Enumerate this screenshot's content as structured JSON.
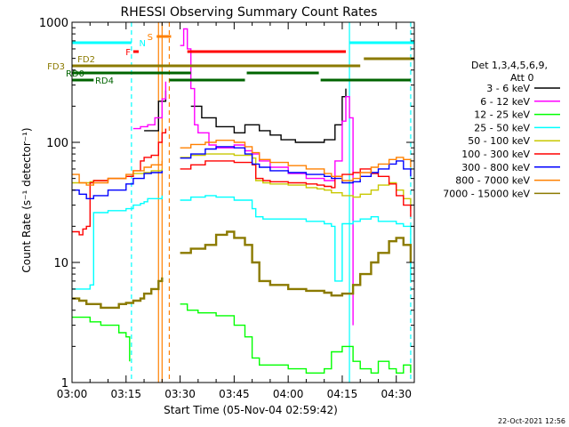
{
  "chart_data": {
    "type": "line",
    "title": "RHESSI Observing Summary Count Rates",
    "xlabel": "Start Time (05-Nov-04 02:59:42)",
    "ylabel": "Count Rate (s⁻¹ detector⁻¹)",
    "yscale": "log",
    "ylim": [
      1,
      1000
    ],
    "xlim_minutes": [
      0,
      95
    ],
    "x_ticks": [
      {
        "t": 0,
        "label": "03:00"
      },
      {
        "t": 15,
        "label": "03:15"
      },
      {
        "t": 30,
        "label": "03:30"
      },
      {
        "t": 45,
        "label": "03:45"
      },
      {
        "t": 60,
        "label": "04:00"
      },
      {
        "t": 75,
        "label": "04:15"
      },
      {
        "t": 90,
        "label": "04:30"
      }
    ],
    "y_ticks": [
      {
        "v": 1,
        "label": "1"
      },
      {
        "v": 10,
        "label": "10"
      },
      {
        "v": 100,
        "label": "100"
      },
      {
        "v": 1000,
        "label": "1000"
      }
    ],
    "detector_info": [
      "Det 1,3,4,5,6,9,",
      "Att 0"
    ],
    "date_stamp": "22-Oct-2021 12:56",
    "grid": false,
    "legend_position": "right",
    "series": [
      {
        "name": "3 - 6 keV",
        "color": "#000000",
        "x": [
          0,
          5,
          10,
          17,
          20,
          24,
          26,
          28,
          30,
          31,
          33,
          36,
          40,
          45,
          48,
          52,
          55,
          58,
          62,
          66,
          70,
          73,
          75,
          76
        ],
        "y": [
          null,
          null,
          null,
          null,
          125,
          220,
          270,
          null,
          null,
          null,
          200,
          160,
          135,
          120,
          140,
          125,
          115,
          105,
          100,
          100,
          105,
          140,
          240,
          280
        ]
      },
      {
        "name": "6 - 12 keV",
        "color": "#ff00ff",
        "x": [
          17,
          19,
          21,
          23,
          25,
          26,
          28,
          30,
          31,
          32,
          33,
          34,
          35,
          38,
          40,
          43,
          45,
          48,
          50,
          52,
          55,
          60,
          65,
          70,
          73,
          75,
          76,
          77,
          78
        ],
        "y": [
          130,
          135,
          140,
          160,
          230,
          320,
          null,
          640,
          880,
          600,
          280,
          140,
          120,
          95,
          90,
          90,
          95,
          85,
          80,
          70,
          62,
          55,
          50,
          48,
          70,
          150,
          240,
          160,
          3
        ]
      },
      {
        "name": "12 - 25 keV",
        "color": "#00ff00",
        "x": [
          0,
          2,
          5,
          8,
          10,
          13,
          15,
          16,
          17,
          18,
          20,
          22,
          25,
          27,
          29,
          30,
          32,
          35,
          40,
          45,
          48,
          50,
          52,
          55,
          60,
          65,
          70,
          72,
          75,
          78,
          80,
          83,
          85,
          88,
          90,
          92,
          94
        ],
        "y": [
          3.5,
          3.5,
          3.2,
          3.0,
          3.0,
          2.6,
          2.4,
          1.5,
          null,
          null,
          null,
          null,
          null,
          null,
          null,
          4.5,
          4.0,
          3.8,
          3.6,
          3.0,
          2.4,
          1.6,
          1.4,
          1.4,
          1.3,
          1.2,
          1.3,
          1.8,
          2.0,
          1.5,
          1.3,
          1.2,
          1.5,
          1.3,
          1.2,
          1.4,
          1.2
        ]
      },
      {
        "name": "25 - 50 keV",
        "color": "#00ffff",
        "x": [
          0,
          3,
          5,
          6,
          10,
          15,
          17,
          19,
          20,
          21,
          25,
          27,
          29,
          30,
          33,
          37,
          40,
          45,
          50,
          51,
          53,
          55,
          60,
          65,
          68,
          70,
          72,
          73,
          75,
          78,
          80,
          83,
          85,
          88,
          90,
          92,
          94
        ],
        "y": [
          6,
          6,
          6.5,
          26,
          27,
          28,
          30,
          31,
          32,
          34,
          36,
          null,
          null,
          33,
          35,
          36,
          35,
          33,
          28,
          24,
          23,
          23,
          23,
          22,
          22,
          21,
          20,
          7,
          21,
          22,
          23,
          24,
          22,
          22,
          21,
          20,
          7
        ]
      },
      {
        "name": "50 - 100 keV",
        "color": "#c8c800",
        "x": [
          0,
          3,
          5,
          6,
          10,
          15,
          17,
          20,
          22,
          25,
          27,
          29,
          30,
          33,
          37,
          40,
          45,
          50,
          51,
          53,
          55,
          60,
          65,
          68,
          70,
          72,
          75,
          78,
          80,
          83,
          85,
          88,
          90,
          92,
          94
        ],
        "y": [
          46,
          46,
          47,
          48,
          50,
          52,
          55,
          56,
          58,
          60,
          null,
          null,
          75,
          78,
          80,
          80,
          78,
          74,
          48,
          46,
          45,
          44,
          42,
          41,
          40,
          38,
          36,
          35,
          37,
          40,
          44,
          46,
          40,
          34,
          28
        ]
      },
      {
        "name": "100 - 300 keV",
        "color": "#ff0000",
        "x": [
          0,
          2,
          3,
          4,
          5,
          6,
          10,
          15,
          17,
          19,
          20,
          22,
          24,
          25,
          26,
          27,
          29,
          30,
          33,
          37,
          40,
          45,
          50,
          51,
          53,
          55,
          60,
          65,
          68,
          70,
          72,
          73,
          75,
          78,
          80,
          83,
          85,
          88,
          90,
          92,
          94
        ],
        "y": [
          18,
          17,
          19,
          20,
          46,
          48,
          50,
          52,
          58,
          70,
          75,
          78,
          100,
          120,
          130,
          null,
          null,
          60,
          65,
          70,
          70,
          68,
          65,
          50,
          48,
          47,
          46,
          45,
          44,
          43,
          42,
          52,
          54,
          56,
          60,
          55,
          52,
          45,
          36,
          30,
          24
        ]
      },
      {
        "name": "300 - 800 keV",
        "color": "#0000ff",
        "x": [
          0,
          2,
          4,
          6,
          10,
          15,
          17,
          20,
          22,
          25,
          27,
          29,
          30,
          33,
          37,
          40,
          43,
          45,
          48,
          50,
          52,
          55,
          60,
          65,
          70,
          72,
          75,
          78,
          80,
          83,
          85,
          88,
          90,
          92,
          94
        ],
        "y": [
          40,
          37,
          34,
          36,
          40,
          45,
          50,
          55,
          56,
          58,
          null,
          null,
          74,
          80,
          88,
          92,
          92,
          90,
          80,
          66,
          62,
          58,
          56,
          54,
          52,
          50,
          46,
          47,
          52,
          56,
          60,
          66,
          70,
          60,
          52
        ]
      },
      {
        "name": "800 - 7000 keV",
        "color": "#ff8000",
        "x": [
          0,
          2,
          4,
          6,
          10,
          15,
          17,
          20,
          22,
          25,
          27,
          29,
          30,
          33,
          37,
          40,
          43,
          45,
          48,
          50,
          52,
          55,
          60,
          65,
          70,
          72,
          75,
          78,
          80,
          83,
          85,
          88,
          90,
          92,
          94
        ],
        "y": [
          54,
          46,
          44,
          46,
          50,
          54,
          58,
          62,
          65,
          70,
          null,
          null,
          90,
          96,
          100,
          104,
          104,
          100,
          92,
          82,
          72,
          68,
          64,
          60,
          55,
          52,
          48,
          50,
          56,
          62,
          66,
          72,
          75,
          72,
          62
        ]
      },
      {
        "name": "7000 - 15000 keV",
        "color": "#8b7a00",
        "x": [
          0,
          2,
          4,
          6,
          8,
          10,
          13,
          15,
          17,
          19,
          20,
          22,
          24,
          25,
          27,
          29,
          30,
          33,
          37,
          40,
          43,
          45,
          48,
          50,
          52,
          55,
          60,
          65,
          70,
          72,
          75,
          78,
          80,
          83,
          85,
          88,
          90,
          92,
          94
        ],
        "y": [
          5,
          4.8,
          4.5,
          4.5,
          4.2,
          4.2,
          4.5,
          4.6,
          4.8,
          5,
          5.5,
          6,
          7,
          7.5,
          null,
          null,
          12,
          13,
          14,
          17,
          18,
          16,
          14,
          10,
          7,
          6.5,
          6,
          5.8,
          5.6,
          5.3,
          5.5,
          6.5,
          8,
          10,
          12,
          15,
          16,
          14,
          10
        ]
      }
    ],
    "state_bars": [
      {
        "label": "S",
        "color": "#ff8000",
        "x_start": 23.5,
        "x_end": 27.5,
        "y_level": "S"
      },
      {
        "label": "N",
        "color": "#00ffff",
        "x_start": 0,
        "x_end": 16.5,
        "y_level": "N"
      },
      {
        "label": "N",
        "color": "#00ffff",
        "x_start": 77,
        "x_end": 95,
        "y_level": "N"
      },
      {
        "label": "F",
        "color": "#ff0000",
        "x_start": 17,
        "x_end": 18.5,
        "y_level": "F"
      },
      {
        "label": "F",
        "color": "#ff0000",
        "x_start": 32,
        "x_end": 76,
        "y_level": "F"
      },
      {
        "label": "FD2",
        "color": "#8b7a00",
        "x_start": 81,
        "x_end": 95,
        "y_level": "FD2"
      },
      {
        "label": "FD3",
        "color": "#8b7a00",
        "x_start": 0,
        "x_end": 80,
        "y_level": "FD3"
      },
      {
        "label": "RD0",
        "color": "#006400",
        "x_start": 0,
        "x_end": 33,
        "y_level": "RD0"
      },
      {
        "label": "RD0",
        "color": "#006400",
        "x_start": 48.5,
        "x_end": 68.5,
        "y_level": "RD0"
      },
      {
        "label": "RD4",
        "color": "#006400",
        "x_start": 0,
        "x_end": 6,
        "y_level": "RD4"
      },
      {
        "label": "RD4",
        "color": "#006400",
        "x_start": 27,
        "x_end": 48,
        "y_level": "RD4"
      },
      {
        "label": "RD4",
        "color": "#006400",
        "x_start": 69,
        "x_end": 94,
        "y_level": "RD4"
      }
    ],
    "vertical_markers": [
      {
        "x": 16.5,
        "color": "#00ffff",
        "style": "dashed"
      },
      {
        "x": 24,
        "color": "#ff8000",
        "style": "solid"
      },
      {
        "x": 25,
        "color": "#ff8000",
        "style": "solid"
      },
      {
        "x": 27,
        "color": "#ff8000",
        "style": "dashed"
      },
      {
        "x": 77,
        "color": "#00ffff",
        "style": "solid"
      },
      {
        "x": 94,
        "color": "#00ffff",
        "style": "dashed"
      }
    ]
  }
}
